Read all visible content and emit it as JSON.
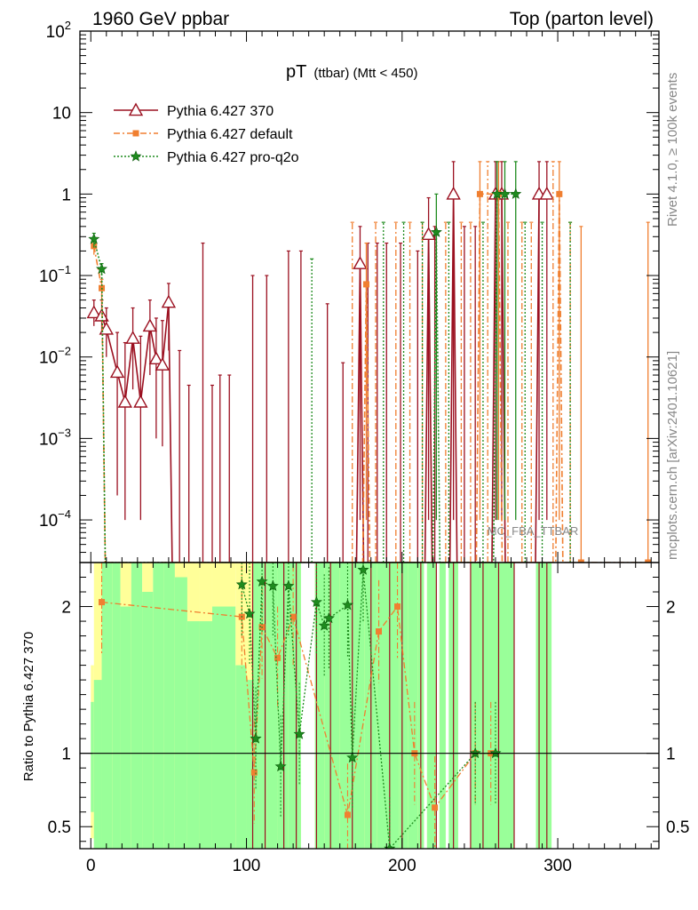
{
  "chart_data": {
    "type": "line",
    "header": {
      "left": "1960 GeV ppbar",
      "right": "Top (parton level)"
    },
    "title": "pT",
    "title_sub": "(ttbar) (Mtt < 450)",
    "watermark": "MC_FBA_TTBAR",
    "side_labels": {
      "rivet": "Rivet 4.1.0, ≥ 100k events",
      "url": "mcplots.cern.ch [arXiv:2401.10621]"
    },
    "xlabel": "",
    "xlim": [
      -7,
      365
    ],
    "xticks": [
      0,
      100,
      200,
      300
    ],
    "xtick_labels": [
      "0",
      "100",
      "200",
      "300"
    ],
    "main": {
      "yscale": "log",
      "ylim": [
        3e-05,
        100
      ],
      "ytick_labels": [
        {
          "v": 100,
          "base": "10",
          "exp": "2"
        },
        {
          "v": 10,
          "base": "10",
          "exp": ""
        },
        {
          "v": 1,
          "base": "1",
          "exp": ""
        },
        {
          "v": 0.1,
          "base": "10",
          "exp": "−1"
        },
        {
          "v": 0.01,
          "base": "10",
          "exp": "−2"
        },
        {
          "v": 0.001,
          "base": "10",
          "exp": "−3"
        },
        {
          "v": 0.0001,
          "base": "10",
          "exp": "−4"
        }
      ]
    },
    "ratio": {
      "ylabel": "Ratio to Pythia 6.427 370",
      "ylim": [
        0.35,
        2.3
      ],
      "ytick_labels": [
        {
          "v": 0.5,
          "label": "0.5"
        },
        {
          "v": 1,
          "label": "1"
        },
        {
          "v": 2,
          "label": "2"
        }
      ]
    },
    "legend": [
      {
        "label": "Pythia 6.427 370",
        "color": "#9b1020",
        "marker": "triangle",
        "dash": ""
      },
      {
        "label": "Pythia 6.427 default",
        "color": "#f07f30",
        "marker": "square",
        "dash": "7,3,2,3"
      },
      {
        "label": "Pythia 6.427 pro-q2o",
        "color": "#1e8b1e",
        "marker": "star",
        "dash": "2,2"
      }
    ],
    "series": [
      {
        "name": "Pythia 6.427 370",
        "color": "#9b1020",
        "points": [
          {
            "x": 2,
            "y": 0.035,
            "lo": 0.024,
            "hi": 0.05
          },
          {
            "x": 7,
            "y": 0.032,
            "lo": 0.02,
            "hi": 0.05
          },
          {
            "x": 10,
            "y": 0.022,
            "lo": 0.01,
            "hi": 0.04
          },
          {
            "x": 17,
            "y": 0.0065,
            "lo": 0.0002,
            "hi": 0.02
          },
          {
            "x": 22,
            "y": 0.0028,
            "lo": 0.0001,
            "hi": 0.015
          },
          {
            "x": 27,
            "y": 0.017,
            "lo": 0.004,
            "hi": 0.04
          },
          {
            "x": 32,
            "y": 0.0028,
            "lo": 0.0001,
            "hi": 0.018
          },
          {
            "x": 38,
            "y": 0.024,
            "lo": 0.006,
            "hi": 0.05
          },
          {
            "x": 42,
            "y": 0.0095,
            "lo": 0.001,
            "hi": 0.03
          },
          {
            "x": 46,
            "y": 0.008,
            "lo": 0.0008,
            "hi": 0.028
          },
          {
            "x": 50,
            "y": 0.047,
            "lo": 0.012,
            "hi": 0.08
          },
          {
            "x": 173,
            "y": 0.14,
            "lo": 0.0001,
            "hi": 0.4
          },
          {
            "x": 217,
            "y": 0.32,
            "lo": 0.0001,
            "hi": 0.9
          },
          {
            "x": 233,
            "y": 1.0,
            "lo": 0.0001,
            "hi": 2.5
          },
          {
            "x": 260,
            "y": 1.0,
            "lo": 0.0001,
            "hi": 2.5
          },
          {
            "x": 264,
            "y": 1.0,
            "lo": 0.0001,
            "hi": 2.5
          },
          {
            "x": 288,
            "y": 1.0,
            "lo": 0.0001,
            "hi": 2.5
          },
          {
            "x": 293,
            "y": 1.0,
            "lo": 0.0001,
            "hi": 2.5
          }
        ],
        "extra_bars": [
          {
            "x": 57,
            "hi": 0.012
          },
          {
            "x": 63,
            "hi": 0.0045
          },
          {
            "x": 72,
            "hi": 0.25
          },
          {
            "x": 78,
            "hi": 0.0045
          },
          {
            "x": 83,
            "hi": 0.006
          },
          {
            "x": 89,
            "hi": 0.006
          },
          {
            "x": 104,
            "hi": 0.1
          },
          {
            "x": 113,
            "hi": 0.1
          },
          {
            "x": 127,
            "hi": 0.2
          },
          {
            "x": 135,
            "hi": 0.2
          },
          {
            "x": 152,
            "hi": 0.045
          },
          {
            "x": 162,
            "hi": 0.0085
          },
          {
            "x": 178,
            "hi": 0.25
          },
          {
            "x": 184,
            "hi": 0.25
          },
          {
            "x": 190,
            "hi": 0.25
          },
          {
            "x": 199,
            "hi": 0.25
          },
          {
            "x": 210,
            "hi": 0.2
          },
          {
            "x": 221,
            "hi": 0.4
          },
          {
            "x": 240,
            "hi": 0.4
          },
          {
            "x": 247,
            "hi": 0.4
          }
        ],
        "ratio_bars": [
          104,
          112,
          124,
          132,
          145,
          154,
          168,
          180,
          192,
          200,
          212,
          222,
          233,
          244,
          252,
          262,
          272,
          288,
          293
        ]
      },
      {
        "name": "Pythia 6.427 default",
        "color": "#f07f30",
        "points": [
          {
            "x": 2,
            "y": 0.23,
            "lo": 0.18,
            "hi": 0.28
          },
          {
            "x": 7,
            "y": 0.07,
            "lo": 0.05,
            "hi": 0.09
          },
          {
            "x": 177,
            "y": 0.078,
            "lo": 0.0001,
            "hi": 0.25
          },
          {
            "x": 250,
            "y": 1.0,
            "lo": 0.0001,
            "hi": 2.5
          },
          {
            "x": 262,
            "y": 1.0,
            "lo": 0.0001,
            "hi": 2.5
          },
          {
            "x": 301,
            "y": 1.0,
            "lo": 0.0001,
            "hi": 2.5
          },
          {
            "x": 315,
            "y": 3e-05,
            "lo": 3e-05,
            "hi": 0.4
          },
          {
            "x": 358,
            "y": 3e-05,
            "lo": 3e-05,
            "hi": 0.45
          }
        ],
        "extra_bars": [
          {
            "x": 168,
            "hi": 0.45
          },
          {
            "x": 183,
            "hi": 0.45
          },
          {
            "x": 196,
            "hi": 0.45
          },
          {
            "x": 205,
            "hi": 0.45
          },
          {
            "x": 213,
            "hi": 0.45
          },
          {
            "x": 228,
            "hi": 0.45
          },
          {
            "x": 238,
            "hi": 0.45
          },
          {
            "x": 244,
            "hi": 0.45
          },
          {
            "x": 255,
            "hi": 2.5
          },
          {
            "x": 268,
            "hi": 0.45
          },
          {
            "x": 277,
            "hi": 0.45
          },
          {
            "x": 283,
            "hi": 0.45
          },
          {
            "x": 297,
            "hi": 2.5
          },
          {
            "x": 308,
            "hi": 0.45
          }
        ],
        "ratio_points": [
          {
            "x": 7,
            "y": 2.03
          },
          {
            "x": 97,
            "y": 1.93
          },
          {
            "x": 105,
            "y": 0.87
          },
          {
            "x": 110,
            "y": 1.86
          },
          {
            "x": 120,
            "y": 1.65
          },
          {
            "x": 130,
            "y": 1.93
          },
          {
            "x": 165,
            "y": 0.58
          },
          {
            "x": 185,
            "y": 1.83
          },
          {
            "x": 197,
            "y": 2.0
          },
          {
            "x": 208,
            "y": 1.0
          },
          {
            "x": 221,
            "y": 0.63
          },
          {
            "x": 247,
            "y": 1.0
          },
          {
            "x": 257,
            "y": 1.0
          }
        ]
      },
      {
        "name": "Pythia 6.427 pro-q2o",
        "color": "#1e8b1e",
        "points": [
          {
            "x": 2,
            "y": 0.28,
            "lo": 0.22,
            "hi": 0.33
          },
          {
            "x": 7,
            "y": 0.12,
            "lo": 0.1,
            "hi": 0.14
          },
          {
            "x": 222,
            "y": 0.34,
            "lo": 0.0001,
            "hi": 1.0
          },
          {
            "x": 261,
            "y": 1.0,
            "lo": 0.0001,
            "hi": 2.5
          },
          {
            "x": 266,
            "y": 1.0,
            "lo": 0.0001,
            "hi": 2.5
          },
          {
            "x": 273,
            "y": 1.0,
            "lo": 0.0001,
            "hi": 2.5
          }
        ],
        "extra_bars": [
          {
            "x": 142,
            "hi": 0.16
          },
          {
            "x": 188,
            "hi": 0.45
          },
          {
            "x": 201,
            "hi": 0.45
          },
          {
            "x": 213,
            "hi": 0.45
          },
          {
            "x": 230,
            "hi": 0.45
          },
          {
            "x": 252,
            "hi": 0.45
          },
          {
            "x": 279,
            "hi": 0.45
          },
          {
            "x": 290,
            "hi": 0.45
          },
          {
            "x": 308,
            "hi": 0.45
          }
        ],
        "ratio_points": [
          {
            "x": 97,
            "y": 2.15
          },
          {
            "x": 102,
            "y": 1.95
          },
          {
            "x": 106,
            "y": 1.1
          },
          {
            "x": 110,
            "y": 2.17
          },
          {
            "x": 117,
            "y": 2.14
          },
          {
            "x": 122,
            "y": 0.91
          },
          {
            "x": 127,
            "y": 2.14
          },
          {
            "x": 134,
            "y": 1.13
          },
          {
            "x": 145,
            "y": 2.03
          },
          {
            "x": 150,
            "y": 1.87
          },
          {
            "x": 153,
            "y": 1.92
          },
          {
            "x": 165,
            "y": 2.01
          },
          {
            "x": 168,
            "y": 0.97
          },
          {
            "x": 175,
            "y": 2.25
          },
          {
            "x": 192,
            "y": 0.35
          },
          {
            "x": 247,
            "y": 1.0
          },
          {
            "x": 260,
            "y": 1.0
          }
        ]
      }
    ],
    "ratio_bands": [
      {
        "x0": 0,
        "x1": 2,
        "yellow": [
          0.42,
          1.6
        ],
        "green": [
          0.6,
          1.35
        ]
      },
      {
        "x0": 2,
        "x1": 7,
        "yellow": [
          0.35,
          2.3
        ],
        "green": [
          0.35,
          1.5
        ]
      },
      {
        "x0": 7,
        "x1": 14,
        "yellow": [
          0.35,
          2.3
        ],
        "green": [
          0.35,
          2.3
        ]
      },
      {
        "x0": 14,
        "x1": 19,
        "yellow": [
          0.35,
          2.3
        ],
        "green": [
          0.35,
          2.3
        ]
      },
      {
        "x0": 19,
        "x1": 26,
        "yellow": [
          0.35,
          2.3
        ],
        "green": [
          0.35,
          2.0
        ]
      },
      {
        "x0": 26,
        "x1": 33,
        "yellow": [
          0.35,
          2.3
        ],
        "green": [
          0.35,
          2.3
        ]
      },
      {
        "x0": 33,
        "x1": 40,
        "yellow": [
          0.35,
          2.3
        ],
        "green": [
          0.35,
          2.1
        ]
      },
      {
        "x0": 40,
        "x1": 47,
        "yellow": [
          0.35,
          2.3
        ],
        "green": [
          0.35,
          2.3
        ]
      },
      {
        "x0": 47,
        "x1": 54,
        "yellow": [
          0.35,
          2.3
        ],
        "green": [
          0.35,
          2.3
        ]
      },
      {
        "x0": 54,
        "x1": 62,
        "yellow": [
          0.35,
          2.3
        ],
        "green": [
          0.35,
          2.2
        ]
      },
      {
        "x0": 62,
        "x1": 70,
        "yellow": [
          0.35,
          2.3
        ],
        "green": [
          0.35,
          1.9
        ]
      },
      {
        "x0": 70,
        "x1": 78,
        "yellow": [
          0.35,
          2.3
        ],
        "green": [
          0.35,
          1.9
        ]
      },
      {
        "x0": 78,
        "x1": 86,
        "yellow": [
          0.35,
          2.3
        ],
        "green": [
          0.35,
          2.0
        ]
      },
      {
        "x0": 86,
        "x1": 93,
        "yellow": [
          0.35,
          2.3
        ],
        "green": [
          0.35,
          2.0
        ]
      },
      {
        "x0": 93,
        "x1": 100,
        "yellow": [
          0.35,
          2.3
        ],
        "green": [
          0.35,
          1.6
        ]
      },
      {
        "x0": 100,
        "x1": 104,
        "yellow": [
          0.35,
          2.3
        ],
        "green": [
          0.35,
          1.5
        ]
      },
      {
        "x0": 104,
        "x1": 108,
        "yellow": [
          0.35,
          2.3
        ],
        "green": [
          0.35,
          2.3
        ]
      },
      {
        "x0": 108,
        "x1": 113,
        "yellow": [
          0.35,
          2.3
        ],
        "green": [
          0.35,
          2.3
        ]
      },
      {
        "x0": 113,
        "x1": 120,
        "yellow": [
          0.35,
          2.3
        ],
        "green": [
          0.35,
          2.3
        ]
      },
      {
        "x0": 120,
        "x1": 127,
        "yellow": [
          0.35,
          2.3
        ],
        "green": [
          0.35,
          2.3
        ]
      },
      {
        "x0": 127,
        "x1": 135,
        "yellow": [
          0.35,
          2.3
        ],
        "green": [
          0.35,
          2.3
        ]
      },
      {
        "x0": 144,
        "x1": 150,
        "yellow": [
          0.35,
          2.3
        ],
        "green": [
          0.35,
          2.3
        ]
      },
      {
        "x0": 150,
        "x1": 160,
        "yellow": [
          0.35,
          2.3
        ],
        "green": [
          0.35,
          2.3
        ]
      },
      {
        "x0": 160,
        "x1": 168,
        "yellow": [
          0.35,
          2.3
        ],
        "green": [
          0.35,
          2.3
        ]
      },
      {
        "x0": 168,
        "x1": 176,
        "yellow": [
          0.35,
          2.3
        ],
        "green": [
          0.35,
          2.3
        ]
      },
      {
        "x0": 176,
        "x1": 184,
        "yellow": [
          0.35,
          2.3
        ],
        "green": [
          0.35,
          2.3
        ]
      },
      {
        "x0": 184,
        "x1": 192,
        "yellow": [
          0.35,
          2.3
        ],
        "green": [
          0.35,
          2.3
        ]
      },
      {
        "x0": 192,
        "x1": 198,
        "yellow": [
          0.35,
          2.3
        ],
        "green": [
          0.35,
          2.3
        ]
      },
      {
        "x0": 198,
        "x1": 204,
        "yellow": [
          0.35,
          2.3
        ],
        "green": [
          0.35,
          2.3
        ]
      },
      {
        "x0": 204,
        "x1": 210,
        "yellow": [
          0.35,
          2.3
        ],
        "green": [
          0.35,
          2.3
        ]
      },
      {
        "x0": 210,
        "x1": 214,
        "yellow": [
          0.35,
          2.3
        ],
        "green": [
          0.35,
          2.3
        ]
      },
      {
        "x0": 216,
        "x1": 222,
        "yellow": [
          0.35,
          2.3
        ],
        "green": [
          0.35,
          2.3
        ]
      },
      {
        "x0": 224,
        "x1": 228,
        "yellow": [
          0.35,
          2.3
        ],
        "green": [
          0.35,
          2.3
        ]
      },
      {
        "x0": 230,
        "x1": 236,
        "yellow": [
          0.35,
          2.3
        ],
        "green": [
          0.35,
          2.3
        ]
      },
      {
        "x0": 244,
        "x1": 250,
        "yellow": [
          0.35,
          2.3
        ],
        "green": [
          0.35,
          2.3
        ]
      },
      {
        "x0": 250,
        "x1": 256,
        "yellow": [
          0.35,
          2.3
        ],
        "green": [
          0.35,
          2.3
        ]
      },
      {
        "x0": 256,
        "x1": 262,
        "yellow": [
          0.35,
          2.3
        ],
        "green": [
          0.35,
          2.3
        ]
      },
      {
        "x0": 262,
        "x1": 268,
        "yellow": [
          0.35,
          2.3
        ],
        "green": [
          0.35,
          2.3
        ]
      },
      {
        "x0": 268,
        "x1": 272,
        "yellow": [
          0.35,
          2.3
        ],
        "green": [
          0.35,
          2.3
        ]
      },
      {
        "x0": 286,
        "x1": 296,
        "yellow": [
          0.35,
          2.3
        ],
        "green": [
          0.35,
          2.3
        ]
      }
    ]
  }
}
